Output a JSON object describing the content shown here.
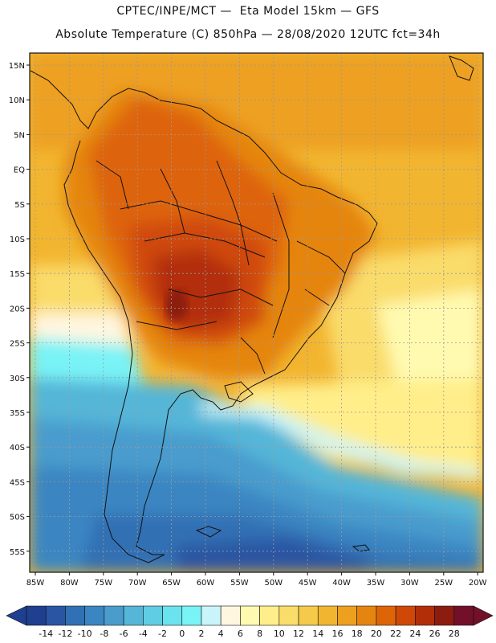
{
  "header": {
    "line1": "CPTEC/INPE/MCT —  Eta Model 15km — GFS",
    "line2": "Absolute Temperature (C) 850hPa — 28/08/2020 12UTC fct=34h"
  },
  "map": {
    "lat_labels": [
      "15N",
      "10N",
      "5N",
      "EQ",
      "5S",
      "10S",
      "15S",
      "20S",
      "25S",
      "30S",
      "35S",
      "40S",
      "45S",
      "50S",
      "55S"
    ],
    "lon_labels": [
      "85W",
      "80W",
      "75W",
      "70W",
      "65W",
      "60W",
      "55W",
      "50W",
      "45W",
      "40W",
      "35W",
      "30W",
      "25W",
      "20W"
    ]
  },
  "colorbar": {
    "labels": [
      "-14",
      "-12",
      "-10",
      "-8",
      "-6",
      "-4",
      "-2",
      "0",
      "2",
      "4",
      "6",
      "8",
      "10",
      "12",
      "14",
      "16",
      "18",
      "20",
      "22",
      "24",
      "26",
      "28"
    ],
    "colors": [
      "#1f3f8f",
      "#2a55a3",
      "#3070b4",
      "#3a86c2",
      "#4a9ccd",
      "#55b6d8",
      "#5fcde3",
      "#6ae3ee",
      "#79f3f6",
      "#c9f4fa",
      "#fff6e0",
      "#fffab0",
      "#ffee8a",
      "#fadc6a",
      "#f5c94a",
      "#f2b530",
      "#eda020",
      "#e58510",
      "#de6408",
      "#cf4808",
      "#b22e08",
      "#8c1c10",
      "#72102a"
    ]
  }
}
